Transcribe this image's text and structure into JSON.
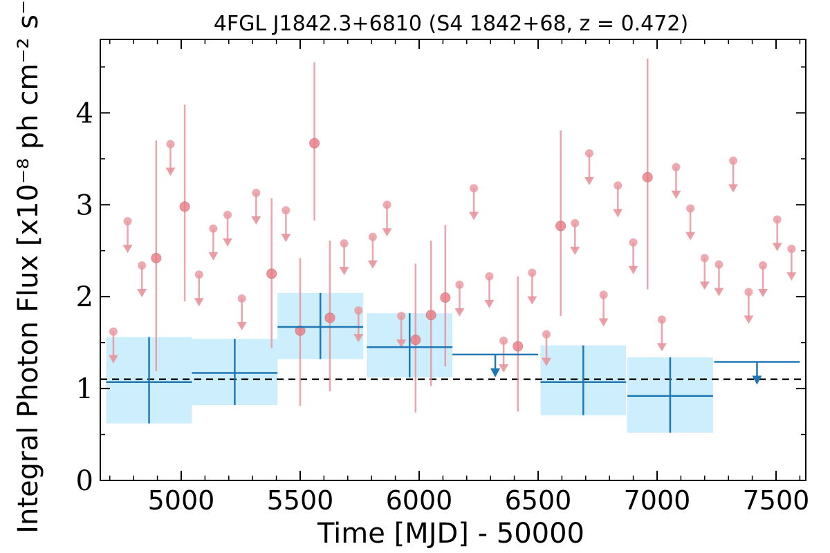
{
  "chart_data": {
    "type": "scatter",
    "title": "4FGL J1842.3+6810 (S4 1842+68, z = 0.472)",
    "xlabel": "Time [MJD] - 50000",
    "ylabel": "Integral Photon Flux [x10⁻⁸ ph cm⁻² s⁻¹]",
    "xlim": [
      4660,
      7625
    ],
    "ylim": [
      0,
      4.8
    ],
    "xticks": [
      5000,
      5500,
      6000,
      6500,
      7000,
      7500
    ],
    "yticks": [
      0,
      1,
      2,
      3,
      4
    ],
    "reference_line": 1.1,
    "colors": {
      "short_bins": "#e8959c",
      "short_bins_marker": "#e97b83",
      "long_bins": "#1f77b4",
      "long_bins_band": "#cdeefd",
      "reference": "#000000"
    },
    "long_bins": {
      "bin_width": 360,
      "points": [
        {
          "x": 4865,
          "y": 1.07,
          "lo": 0.62,
          "hi": 1.56
        },
        {
          "x": 5225,
          "y": 1.17,
          "lo": 0.82,
          "hi": 1.54
        },
        {
          "x": 5585,
          "y": 1.67,
          "lo": 1.32,
          "hi": 2.04
        },
        {
          "x": 5960,
          "y": 1.45,
          "lo": 1.12,
          "hi": 1.82
        },
        {
          "x": 6320,
          "y": 1.37,
          "upper_limit": true
        },
        {
          "x": 6690,
          "y": 1.07,
          "lo": 0.71,
          "hi": 1.47
        },
        {
          "x": 7055,
          "y": 0.92,
          "lo": 0.52,
          "hi": 1.34
        },
        {
          "x": 7420,
          "y": 1.29,
          "upper_limit": true
        }
      ]
    },
    "short_bins": {
      "detections": [
        {
          "x": 4895,
          "y": 2.42,
          "lo": 1.19,
          "hi": 3.7
        },
        {
          "x": 5015,
          "y": 2.98,
          "lo": 1.95,
          "hi": 4.09
        },
        {
          "x": 5380,
          "y": 2.25,
          "lo": 1.44,
          "hi": 3.07
        },
        {
          "x": 5500,
          "y": 1.63,
          "lo": 0.81,
          "hi": 2.42
        },
        {
          "x": 5560,
          "y": 3.67,
          "lo": 2.83,
          "hi": 4.55
        },
        {
          "x": 5625,
          "y": 1.77,
          "lo": 0.97,
          "hi": 2.61
        },
        {
          "x": 5985,
          "y": 1.53,
          "lo": 0.74,
          "hi": 2.36
        },
        {
          "x": 6050,
          "y": 1.8,
          "lo": 1.03,
          "hi": 2.61
        },
        {
          "x": 6110,
          "y": 1.99,
          "lo": 1.24,
          "hi": 2.78
        },
        {
          "x": 6415,
          "y": 1.46,
          "lo": 0.75,
          "hi": 2.22
        },
        {
          "x": 6595,
          "y": 2.77,
          "lo": 1.79,
          "hi": 3.81
        },
        {
          "x": 6960,
          "y": 3.3,
          "lo": 2.08,
          "hi": 4.59
        }
      ],
      "upper_limits": [
        {
          "x": 4715,
          "y": 1.62
        },
        {
          "x": 4775,
          "y": 2.82
        },
        {
          "x": 4835,
          "y": 2.34
        },
        {
          "x": 4955,
          "y": 3.66
        },
        {
          "x": 5075,
          "y": 2.24
        },
        {
          "x": 5135,
          "y": 2.74
        },
        {
          "x": 5195,
          "y": 2.89
        },
        {
          "x": 5255,
          "y": 1.98
        },
        {
          "x": 5315,
          "y": 3.13
        },
        {
          "x": 5440,
          "y": 2.94
        },
        {
          "x": 5685,
          "y": 2.58
        },
        {
          "x": 5745,
          "y": 1.85
        },
        {
          "x": 5805,
          "y": 2.65
        },
        {
          "x": 5865,
          "y": 3.0
        },
        {
          "x": 5925,
          "y": 1.79
        },
        {
          "x": 6170,
          "y": 2.13
        },
        {
          "x": 6230,
          "y": 3.18
        },
        {
          "x": 6295,
          "y": 2.22
        },
        {
          "x": 6355,
          "y": 1.52
        },
        {
          "x": 6475,
          "y": 2.26
        },
        {
          "x": 6535,
          "y": 1.59
        },
        {
          "x": 6655,
          "y": 2.8
        },
        {
          "x": 6715,
          "y": 3.56
        },
        {
          "x": 6775,
          "y": 2.02
        },
        {
          "x": 6835,
          "y": 3.21
        },
        {
          "x": 6900,
          "y": 2.59
        },
        {
          "x": 7020,
          "y": 1.75
        },
        {
          "x": 7080,
          "y": 3.41
        },
        {
          "x": 7140,
          "y": 2.96
        },
        {
          "x": 7200,
          "y": 2.42
        },
        {
          "x": 7260,
          "y": 2.35
        },
        {
          "x": 7320,
          "y": 3.48
        },
        {
          "x": 7385,
          "y": 2.05
        },
        {
          "x": 7445,
          "y": 2.34
        },
        {
          "x": 7505,
          "y": 2.84
        },
        {
          "x": 7565,
          "y": 2.52
        }
      ]
    }
  }
}
